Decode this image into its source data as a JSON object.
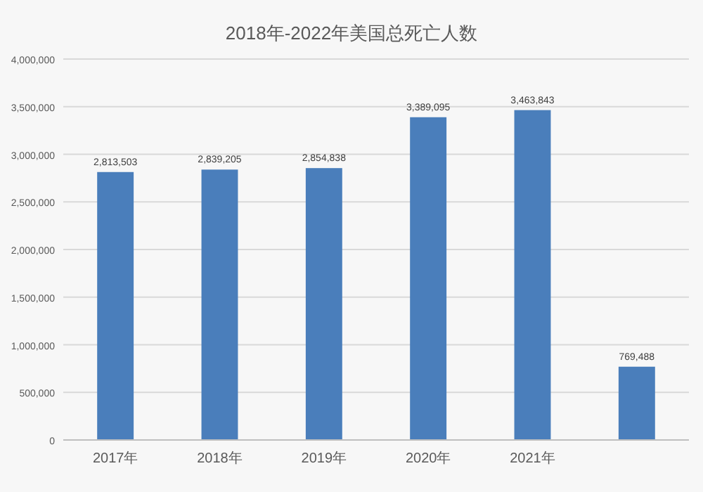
{
  "chart_data": {
    "type": "bar",
    "title": "2018年-2022年美国总死亡人数",
    "categories": [
      "2017年",
      "2018年",
      "2019年",
      "2020年",
      "2021年",
      null
    ],
    "values": [
      2813503,
      2839205,
      2854838,
      3389095,
      3463843,
      769488
    ],
    "color": "#4a7ebb",
    "value_labels": [
      "2,813,503",
      "2,839,205",
      "2,854,838",
      "3,389,095",
      "3,463,843",
      "769,488"
    ],
    "ylim": [
      0,
      4000000
    ],
    "yticks": [
      {
        "value": 0,
        "label": "0"
      },
      {
        "value": 500000,
        "label": "500,000"
      },
      {
        "value": 1000000,
        "label": "1,000,000"
      },
      {
        "value": 1500000,
        "label": "1,500,000"
      },
      {
        "value": 2000000,
        "label": "2,000,000"
      },
      {
        "value": 2500000,
        "label": "2,500,000"
      },
      {
        "value": 3000000,
        "label": "3,000,000"
      },
      {
        "value": 3500000,
        "label": "3,500,000"
      },
      {
        "value": 4000000,
        "label": "4,000,000"
      }
    ],
    "grid": "y"
  }
}
